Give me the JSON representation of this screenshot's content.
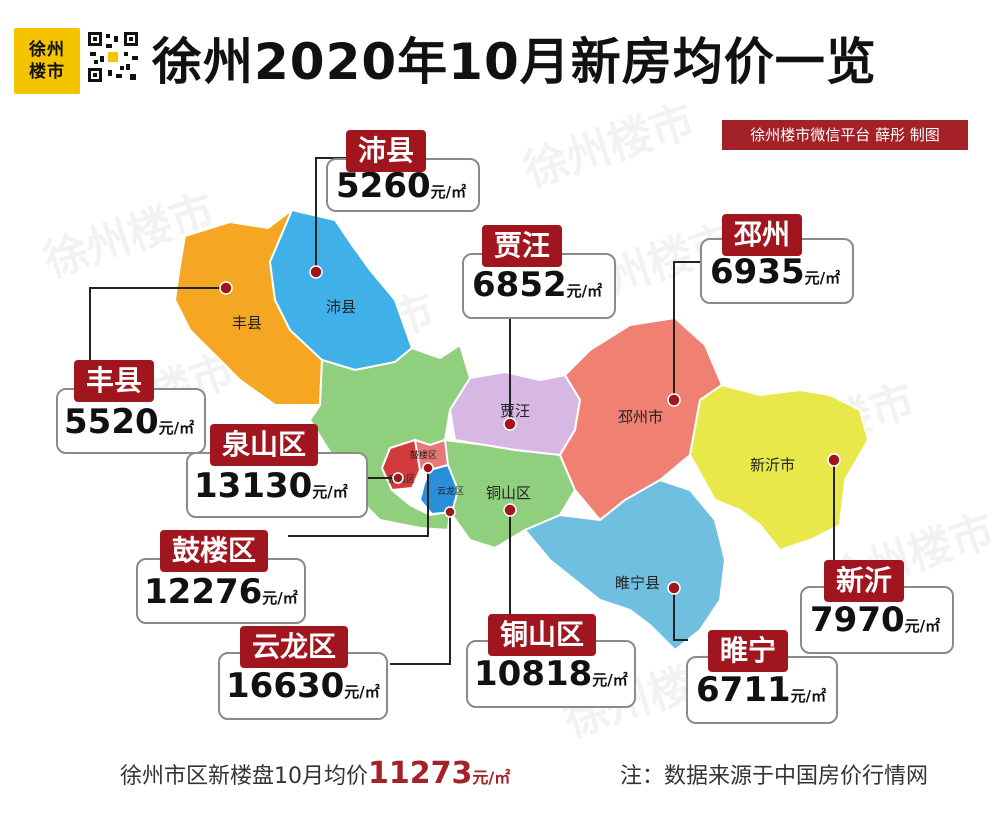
{
  "header": {
    "logo_text_line1": "徐州",
    "logo_text_line2": "楼市",
    "title": "徐州2020年10月新房均价一览",
    "credit": "徐州楼市微信平台 薛彤 制图"
  },
  "watermark": "徐州楼市",
  "districts": [
    {
      "id": "fengxian",
      "map_label": "丰县",
      "tag": "丰县",
      "price": "5520",
      "unit": "元/㎡",
      "color": "#f5a623"
    },
    {
      "id": "peixian",
      "map_label": "沛县",
      "tag": "沛县",
      "price": "5260",
      "unit": "元/㎡",
      "color": "#3fb0e8"
    },
    {
      "id": "jiawang",
      "map_label": "贾汪",
      "tag": "贾汪",
      "price": "6852",
      "unit": "元/㎡",
      "color": "#d7b8e2"
    },
    {
      "id": "pizhou",
      "map_label": "邳州市",
      "tag": "邳州",
      "price": "6935",
      "unit": "元/㎡",
      "color": "#f08072"
    },
    {
      "id": "xinyi",
      "map_label": "新沂市",
      "tag": "新沂",
      "price": "7970",
      "unit": "元/㎡",
      "color": "#e8e84a"
    },
    {
      "id": "suining",
      "map_label": "睢宁县",
      "tag": "睢宁",
      "price": "6711",
      "unit": "元/㎡",
      "color": "#6fc0e0"
    },
    {
      "id": "tongshan",
      "map_label": "铜山区",
      "tag": "铜山区",
      "price": "10818",
      "unit": "元/㎡",
      "color": "#8fcf7e"
    },
    {
      "id": "quanshan",
      "map_label": "泉山区",
      "tag": "泉山区",
      "price": "13130",
      "unit": "元/㎡",
      "color": "#d23b3b"
    },
    {
      "id": "gulou",
      "map_label": "鼓楼区",
      "tag": "鼓楼区",
      "price": "12276",
      "unit": "元/㎡",
      "color": "#e87878"
    },
    {
      "id": "yunlong",
      "map_label": "云龙区",
      "tag": "云龙区",
      "price": "16630",
      "unit": "元/㎡",
      "color": "#2a8fd8"
    }
  ],
  "footer": {
    "avg_prefix": "徐州市区新楼盘10月均价",
    "avg_value": "11273",
    "avg_unit": "元/㎡",
    "note": "注：数据来源于中国房价行情网"
  }
}
